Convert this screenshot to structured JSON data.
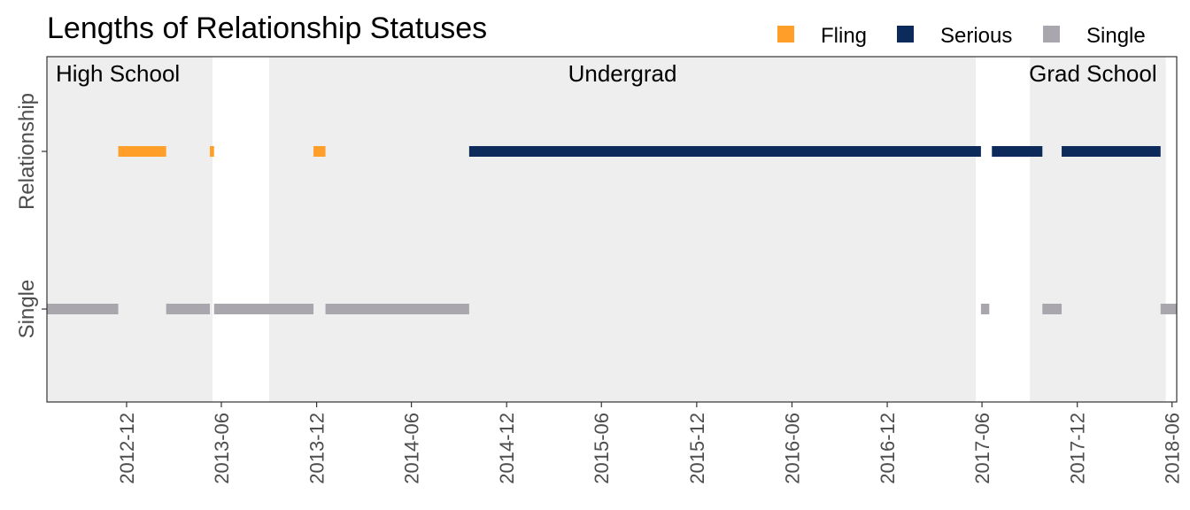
{
  "chart_data": {
    "type": "timeline",
    "title": "Lengths of Relationship Statuses",
    "xlabel": "",
    "ylabel": "",
    "x_axis": {
      "type": "date",
      "range": [
        "2012-07-01",
        "2018-06-10"
      ],
      "ticks": [
        "2012-12",
        "2013-06",
        "2013-12",
        "2014-06",
        "2014-12",
        "2015-06",
        "2015-12",
        "2016-06",
        "2016-12",
        "2017-06",
        "2017-12",
        "2018-06"
      ]
    },
    "y_categories": [
      "Single",
      "Relationship"
    ],
    "legend": {
      "position": "top-right",
      "entries": [
        {
          "label": "Fling",
          "color": "#ff9f2a"
        },
        {
          "label": "Serious",
          "color": "#0c2a5a"
        },
        {
          "label": "Single",
          "color": "#a9a6ad"
        }
      ]
    },
    "periods": [
      {
        "label": "High School",
        "start": "2012-07-01",
        "end": "2013-05-15",
        "color": "#eeeeee"
      },
      {
        "label": "Undergrad",
        "start": "2013-09-01",
        "end": "2017-05-20",
        "color": "#eeeeee"
      },
      {
        "label": "Grad School",
        "start": "2017-09-01",
        "end": "2018-05-20",
        "color": "#eeeeee"
      }
    ],
    "segments": [
      {
        "row": "Relationship",
        "status": "Fling",
        "start": "2012-11-15",
        "end": "2013-02-15"
      },
      {
        "row": "Relationship",
        "status": "Fling",
        "start": "2013-05-10",
        "end": "2013-05-18"
      },
      {
        "row": "Relationship",
        "status": "Fling",
        "start": "2013-11-25",
        "end": "2013-12-18"
      },
      {
        "row": "Relationship",
        "status": "Serious",
        "start": "2014-09-20",
        "end": "2017-05-30"
      },
      {
        "row": "Relationship",
        "status": "Serious",
        "start": "2017-06-20",
        "end": "2017-09-25"
      },
      {
        "row": "Relationship",
        "status": "Serious",
        "start": "2017-11-01",
        "end": "2018-05-10"
      },
      {
        "row": "Single",
        "status": "Single",
        "start": "2012-07-01",
        "end": "2012-11-15"
      },
      {
        "row": "Single",
        "status": "Single",
        "start": "2013-02-15",
        "end": "2013-05-10"
      },
      {
        "row": "Single",
        "status": "Single",
        "start": "2013-05-18",
        "end": "2013-11-25"
      },
      {
        "row": "Single",
        "status": "Single",
        "start": "2013-12-18",
        "end": "2014-09-20"
      },
      {
        "row": "Single",
        "status": "Single",
        "start": "2017-05-30",
        "end": "2017-06-15"
      },
      {
        "row": "Single",
        "status": "Single",
        "start": "2017-09-25",
        "end": "2017-11-01"
      },
      {
        "row": "Single",
        "status": "Single",
        "start": "2018-05-10",
        "end": "2018-06-10"
      }
    ],
    "grid": false
  }
}
